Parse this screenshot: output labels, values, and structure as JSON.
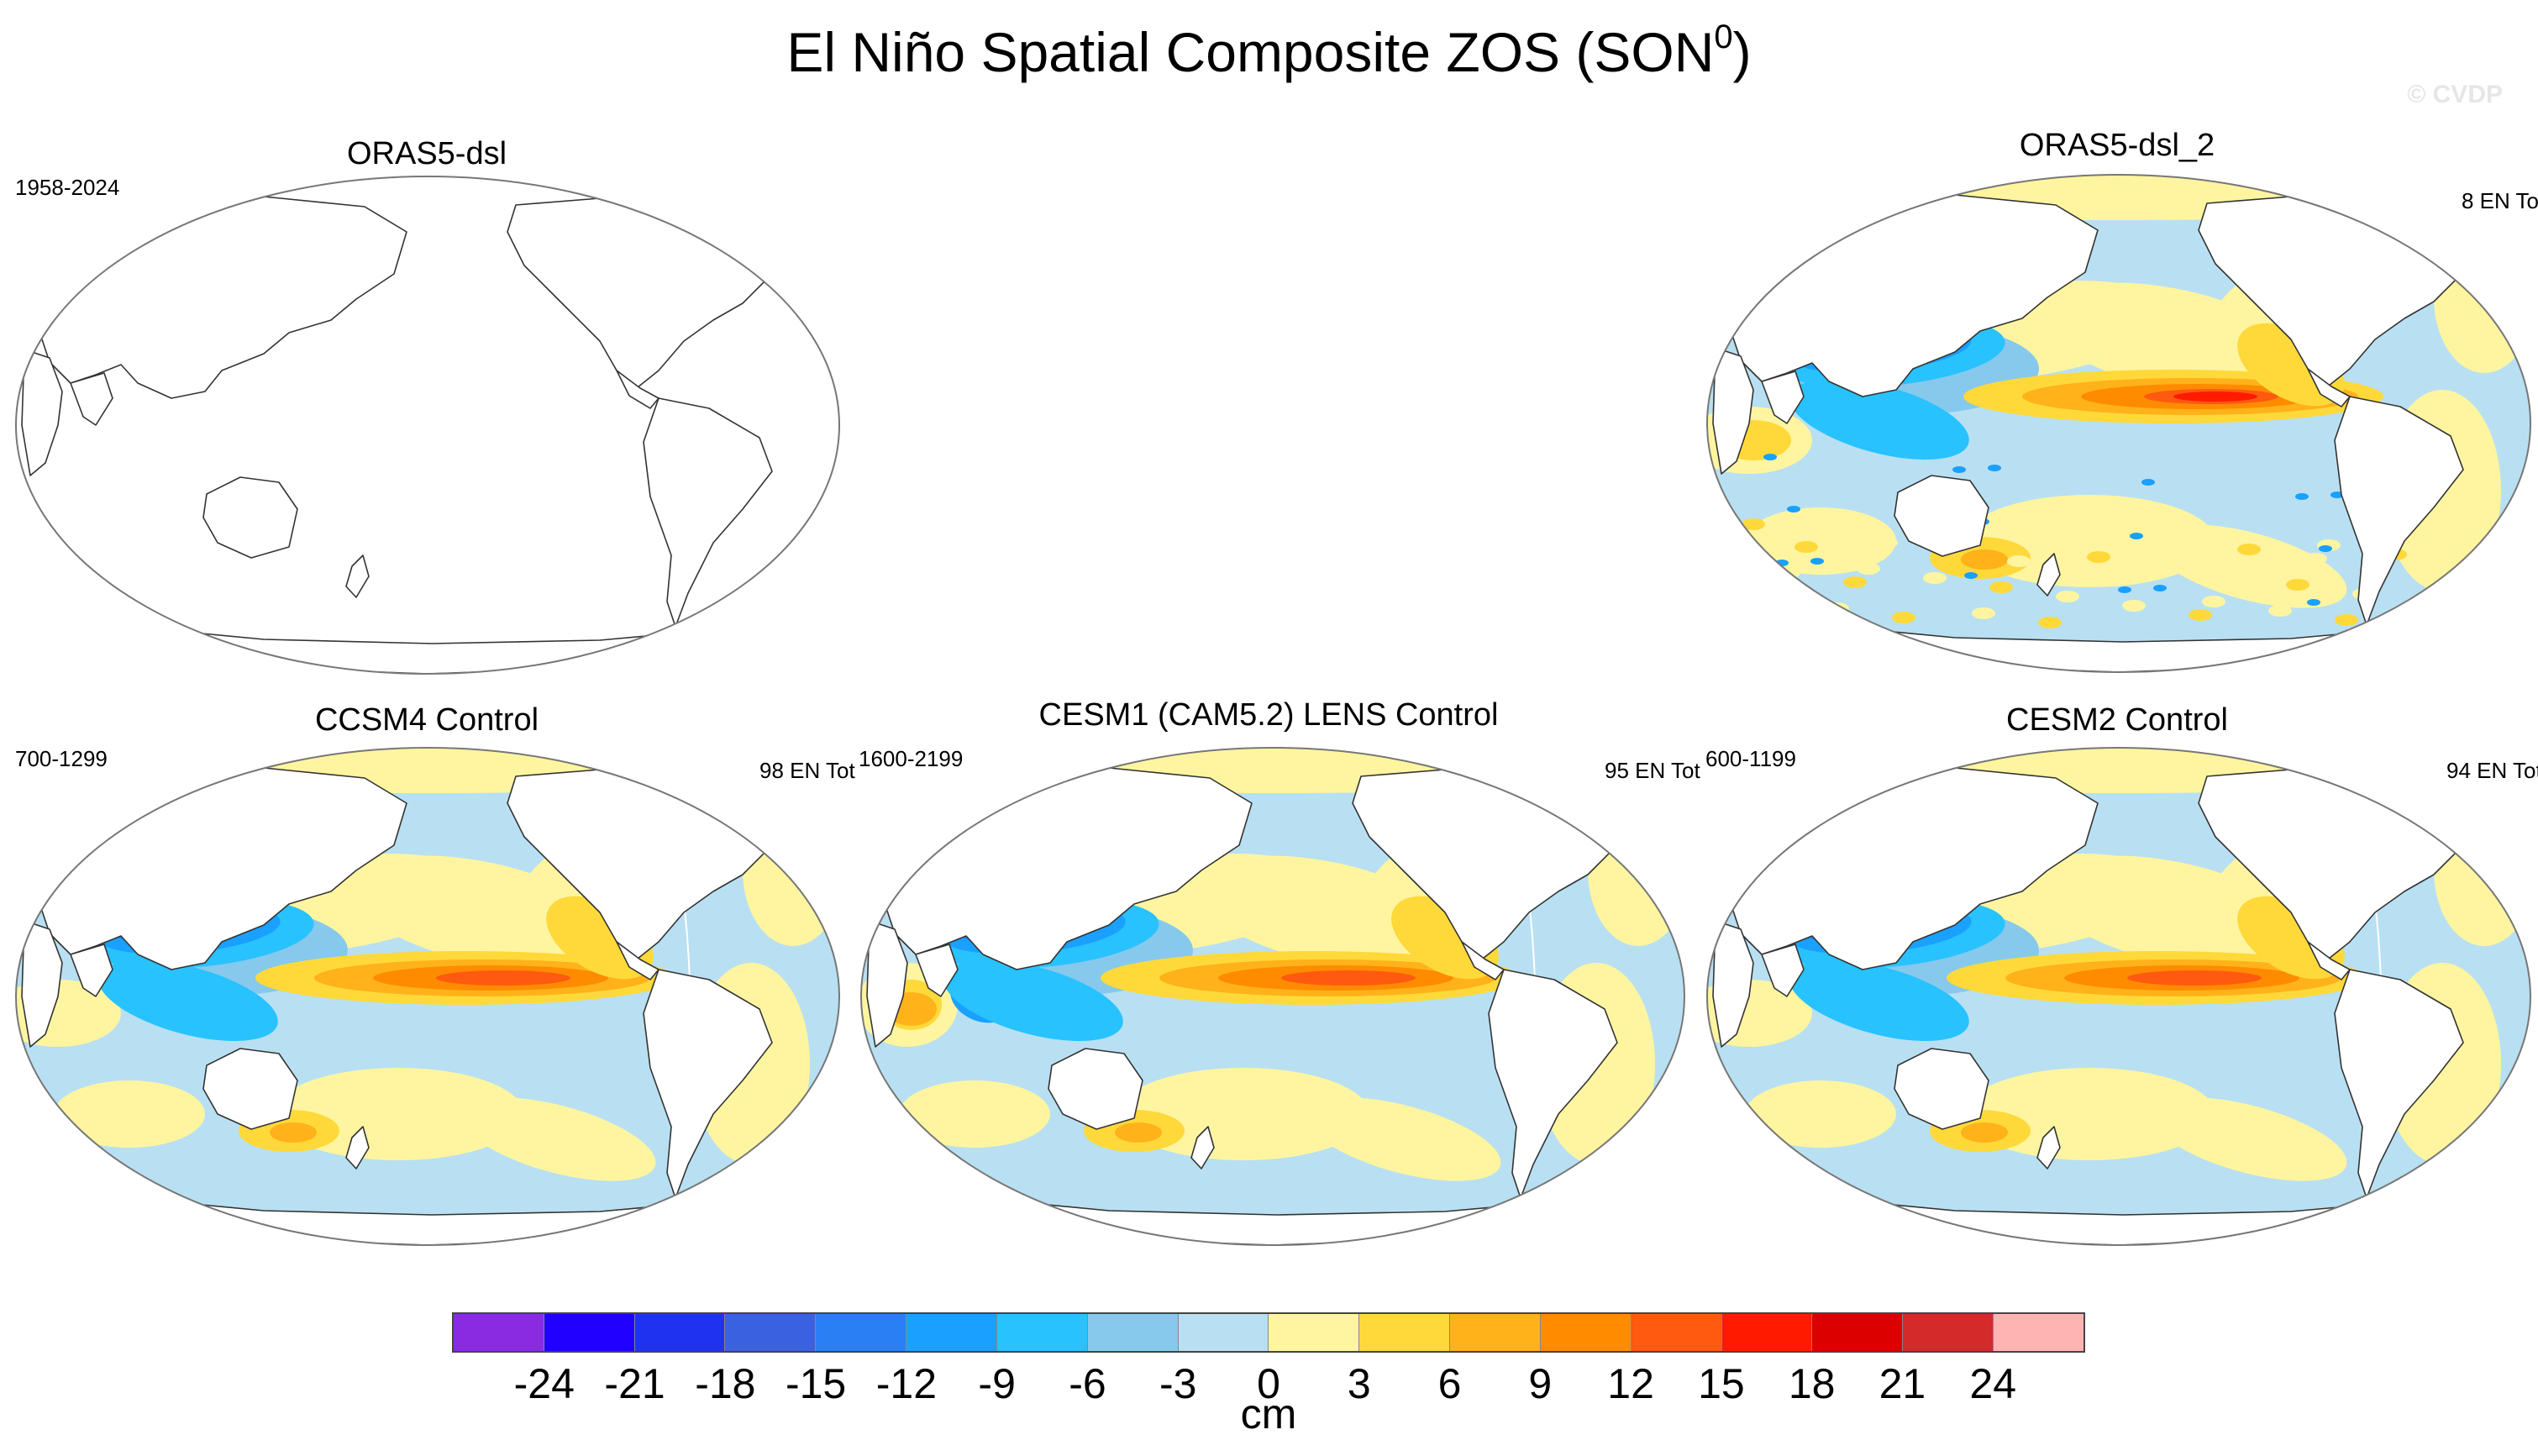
{
  "figure": {
    "title": "El Niño Spatial Composite ZOS (SON",
    "title_sup": "0",
    "title_close": ")",
    "watermark": "© CVDP"
  },
  "panels": [
    {
      "id": "oras5-dsl",
      "title": "ORAS5-dsl",
      "years": "1958-2024",
      "events": "",
      "filled": false
    },
    {
      "id": "oras5-dsl-2",
      "title": "ORAS5-dsl_2",
      "years": "",
      "events": "8 EN To",
      "filled": true,
      "pattern": "observed"
    },
    {
      "id": "ccsm4",
      "title": "CCSM4 Control",
      "years": "700-1299",
      "events": "98 EN Tot",
      "filled": true,
      "pattern": "ccsm4"
    },
    {
      "id": "cesm1",
      "title": "CESM1 (CAM5.2) LENS Control",
      "years": "1600-2199",
      "events": "95 EN Tot",
      "filled": true,
      "pattern": "cesm1"
    },
    {
      "id": "cesm2",
      "title": "CESM2 Control",
      "years": "600-1199",
      "events": "94 EN Tot",
      "filled": true,
      "pattern": "cesm2"
    }
  ],
  "colorbar": {
    "units": "cm",
    "tick_labels": [
      "-24",
      "-21",
      "-18",
      "-15",
      "-12",
      "-9",
      "-6",
      "-3",
      "0",
      "3",
      "6",
      "9",
      "12",
      "15",
      "18",
      "21",
      "24"
    ],
    "colors": [
      "#8a2be2",
      "#2200ff",
      "#1e32f0",
      "#3a62e0",
      "#2a7ff5",
      "#1aa0ff",
      "#28c2ff",
      "#86c9ec",
      "#b8e0f2",
      "#fff5a0",
      "#ffd93a",
      "#ffb21a",
      "#ff8c00",
      "#ff5a10",
      "#ff1a00",
      "#dd0000",
      "#d42a2a",
      "#ffb4b4"
    ]
  }
}
